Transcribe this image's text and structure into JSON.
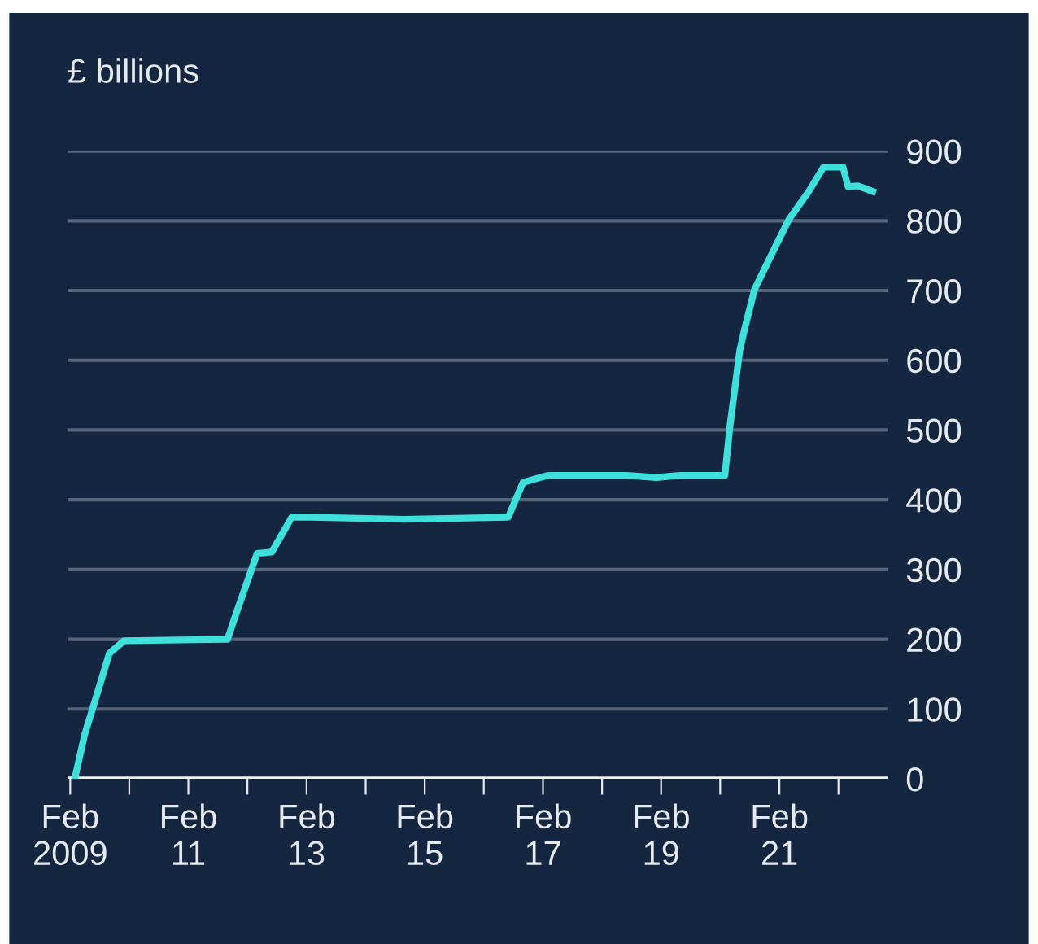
{
  "chart_data": {
    "type": "line",
    "ylabel": "£ billions",
    "x": [
      "2009-03",
      "2009-05",
      "2009-08",
      "2009-10",
      "2010-01",
      "2011-10",
      "2011-12",
      "2012-04",
      "2012-07",
      "2012-11",
      "2013-03",
      "2014-10",
      "2016-07",
      "2016-10",
      "2017-03",
      "2018-07",
      "2019-01",
      "2019-06",
      "2020-03",
      "2020-04",
      "2020-06",
      "2020-07",
      "2020-09",
      "2021-01",
      "2021-04",
      "2021-08",
      "2021-11",
      "2022-03",
      "2022-04",
      "2022-06",
      "2022-09"
    ],
    "series": [
      {
        "color": "#3ee0dc",
        "values": [
          0,
          63,
          133,
          180,
          198,
          200,
          242,
          323,
          325,
          375,
          375,
          372,
          375,
          425,
          435,
          435,
          432,
          435,
          435,
          505,
          614,
          645,
          702,
          760,
          802,
          842,
          877,
          877,
          849,
          850,
          842
        ]
      }
    ],
    "xlim": [
      "2009-01-15",
      "2022-12-01"
    ],
    "xticks": [
      {
        "value": "2009-02",
        "label": "Feb\n2009"
      },
      {
        "value": "2010-02",
        "label": null
      },
      {
        "value": "2011-02",
        "label": "Feb\n11"
      },
      {
        "value": "2012-02",
        "label": null
      },
      {
        "value": "2013-02",
        "label": "Feb\n13"
      },
      {
        "value": "2014-02",
        "label": null
      },
      {
        "value": "2015-02",
        "label": "Feb\n15"
      },
      {
        "value": "2016-02",
        "label": null
      },
      {
        "value": "2017-02",
        "label": "Feb\n17"
      },
      {
        "value": "2018-02",
        "label": null
      },
      {
        "value": "2019-02",
        "label": "Feb\n19"
      },
      {
        "value": "2020-02",
        "label": null
      },
      {
        "value": "2021-02",
        "label": "Feb\n21"
      },
      {
        "value": "2022-02",
        "label": null
      }
    ],
    "ylim": [
      0,
      900
    ],
    "yticks": [
      0,
      100,
      200,
      300,
      400,
      500,
      600,
      700,
      800,
      900
    ],
    "grid": "y",
    "marker": "none",
    "line_style": "solid"
  }
}
